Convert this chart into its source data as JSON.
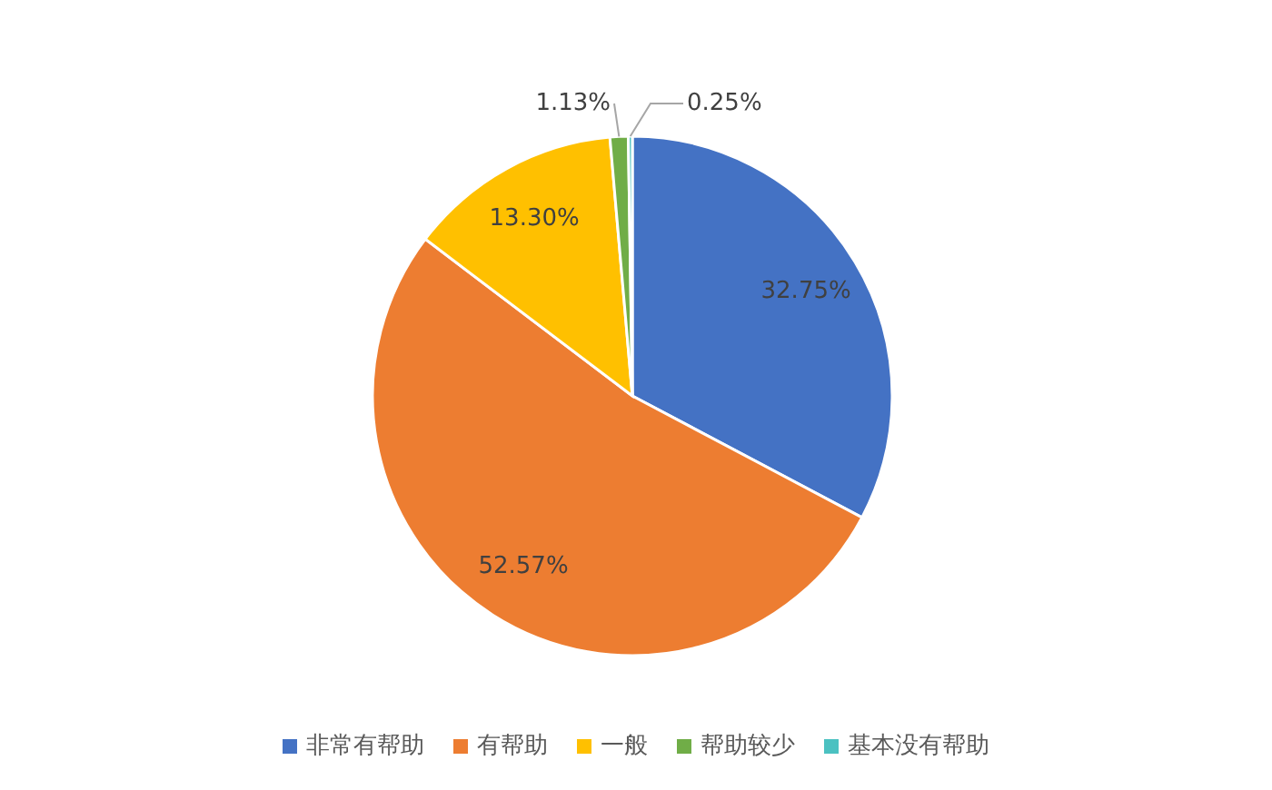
{
  "chart_data": {
    "type": "pie",
    "categories": [
      "非常有帮助",
      "有帮助",
      "一般",
      "帮助较少",
      "基本没有帮助"
    ],
    "values": [
      32.75,
      52.57,
      13.3,
      1.13,
      0.25
    ],
    "value_labels": [
      "32.75%",
      "52.57%",
      "13.30%",
      "1.13%",
      "0.25%"
    ],
    "colors": [
      "#4472c4",
      "#ed7d31",
      "#ffc000",
      "#70ad47",
      "#4bc1c1"
    ],
    "legend": "bottom"
  }
}
